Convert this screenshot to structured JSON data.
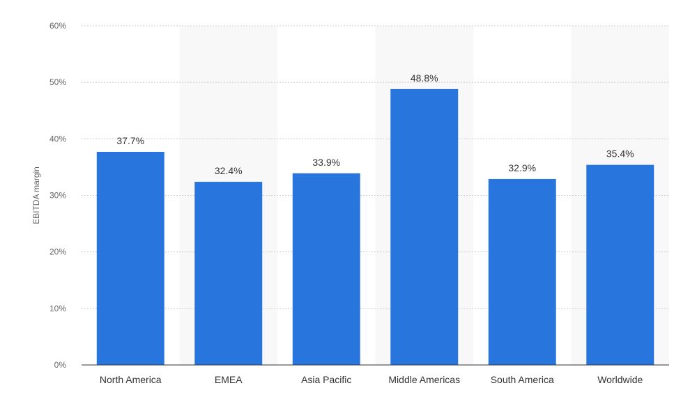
{
  "chart_data": {
    "type": "bar",
    "categories": [
      "North America",
      "EMEA",
      "Asia Pacific",
      "Middle Americas",
      "South America",
      "Worldwide"
    ],
    "values": [
      37.7,
      32.4,
      33.9,
      48.8,
      32.9,
      35.4
    ],
    "value_labels": [
      "37.7%",
      "32.4%",
      "33.9%",
      "48.8%",
      "32.9%",
      "35.4%"
    ],
    "title": "",
    "xlabel": "",
    "ylabel": "EBITDA margin",
    "ylim": [
      0,
      60
    ],
    "yticks": [
      0,
      10,
      20,
      30,
      40,
      50,
      60
    ],
    "ytick_labels": [
      "0%",
      "10%",
      "20%",
      "30%",
      "40%",
      "50%",
      "60%"
    ],
    "grid": true,
    "legend": "none",
    "bar_color": "#2876dd",
    "alt_band_color": "#f8f8f8"
  }
}
